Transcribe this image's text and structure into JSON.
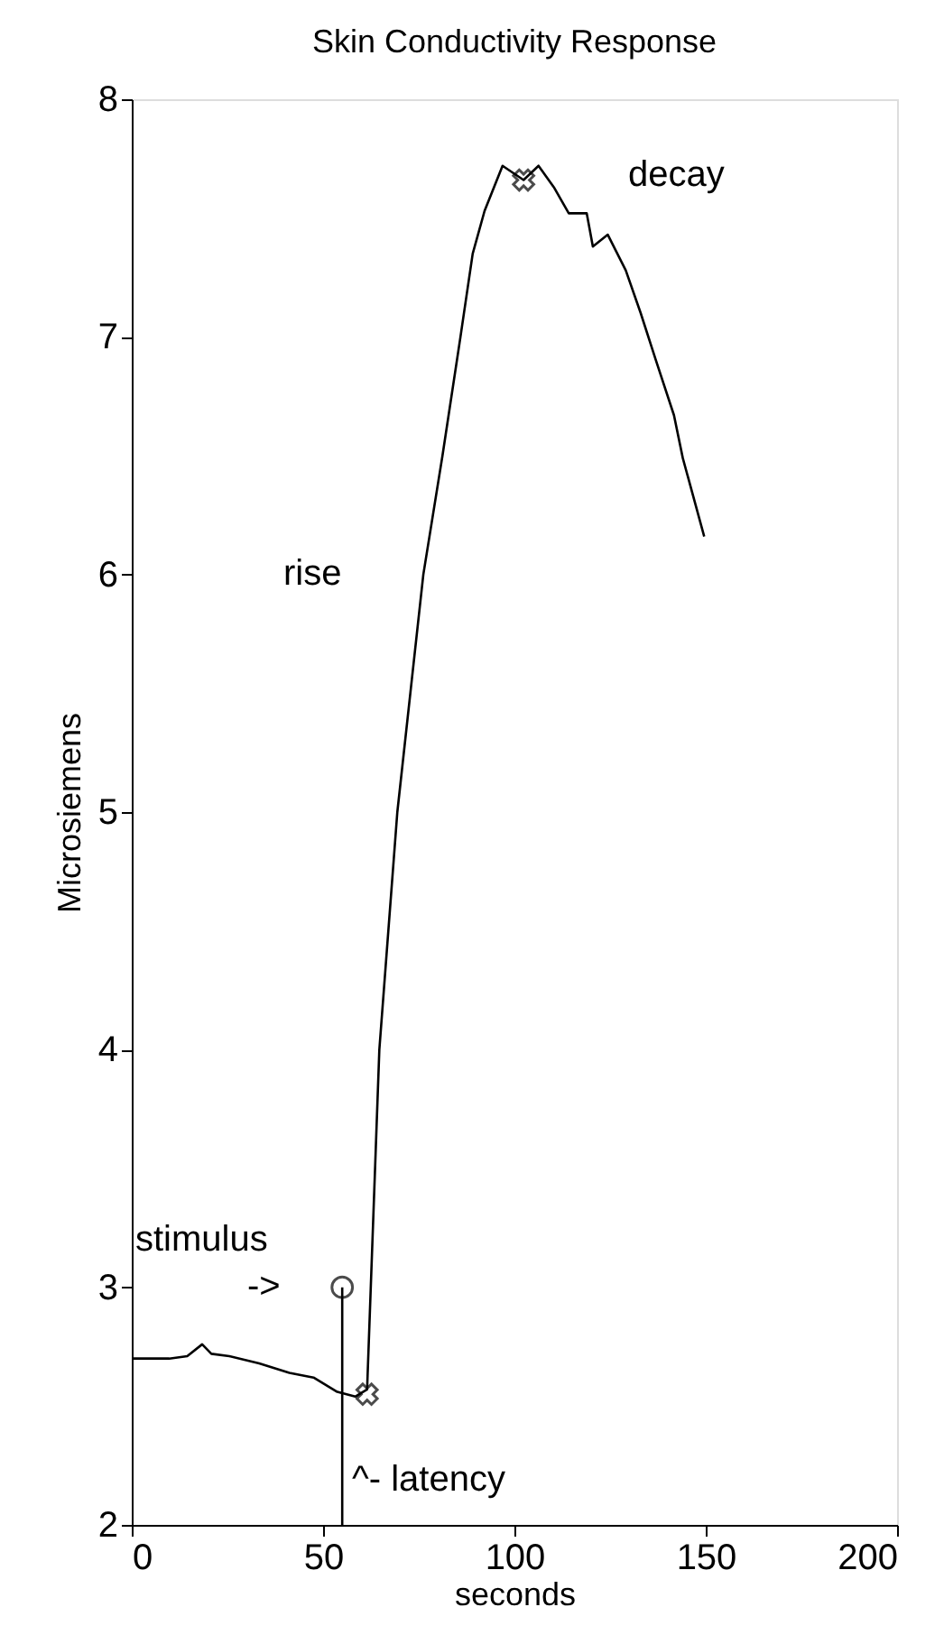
{
  "chart_data": {
    "type": "line",
    "title": "Skin Conductivity Response",
    "xlabel": "seconds",
    "ylabel": "Microsiemens",
    "xlim": [
      0,
      200
    ],
    "xticks": [
      0,
      50,
      100,
      150,
      200
    ],
    "ylim": [
      2,
      8
    ],
    "yticks": [
      2,
      3,
      4,
      5,
      6,
      7,
      8
    ],
    "grid": false,
    "line_style": "solid",
    "series": [
      {
        "color": "#000000",
        "marker": "none",
        "x": [
          0,
          9.8,
          14.5,
          18.4,
          20.8,
          25.5,
          33.3,
          41.2,
          47.5,
          53.7,
          58.4,
          61.5,
          64.7,
          69.4,
          76.2,
          81.2,
          85.9,
          89.1,
          92.2,
          96.9,
          102.4,
          106.3,
          110.3,
          114.2,
          118.9,
          120.5,
          124.4,
          129.1,
          133.0,
          137.0,
          141.7,
          144.0,
          149.6
        ],
        "values": [
          2.7,
          2.7,
          2.71,
          2.76,
          2.72,
          2.71,
          2.68,
          2.64,
          2.62,
          2.56,
          2.54,
          2.57,
          4.0,
          5.0,
          6.0,
          6.5,
          7.0,
          7.35,
          7.53,
          7.72,
          7.66,
          7.72,
          7.63,
          7.52,
          7.52,
          7.38,
          7.43,
          7.28,
          7.1,
          6.9,
          6.67,
          6.49,
          6.16
        ]
      },
      {
        "type": "line",
        "color": "#000000",
        "marker": "none",
        "x": [
          55,
          55
        ],
        "values": [
          2,
          3
        ]
      },
      {
        "type": "scatter",
        "color": "#000000",
        "marker": "circle",
        "x": [
          55
        ],
        "values": [
          3
        ]
      },
      {
        "type": "scatter",
        "color": "#000000",
        "marker": "cross",
        "x": [
          61.5,
          102.4
        ],
        "values": [
          2.55,
          7.66
        ]
      }
    ],
    "annotations": [
      "stimulus",
      "->",
      "rise",
      "decay",
      "^- latency"
    ]
  }
}
